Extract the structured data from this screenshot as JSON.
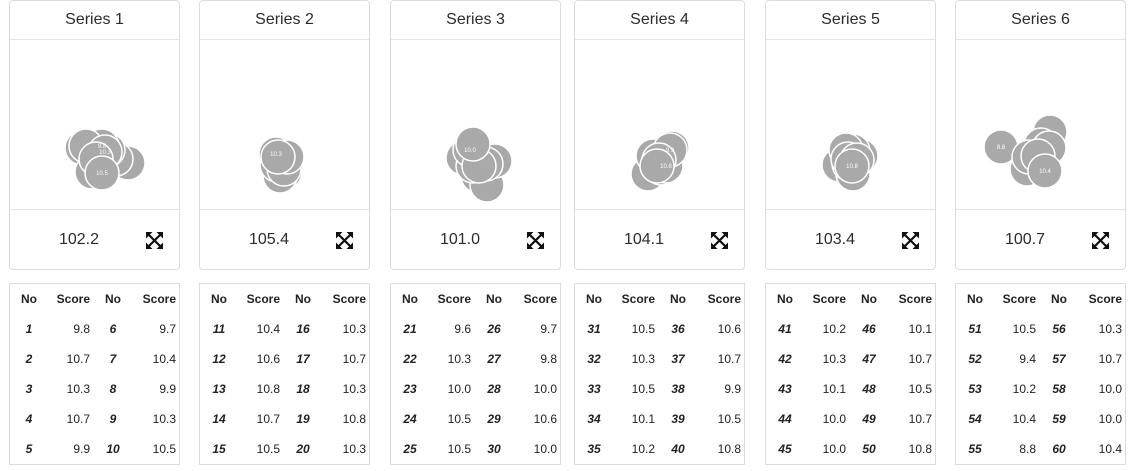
{
  "series": [
    {
      "title": "Series 1",
      "total": "102.2",
      "shot_labels": [
        "9.8",
        "10.3",
        "10.5"
      ],
      "table_headers": [
        "No",
        "Score",
        "No",
        "Score"
      ],
      "rows": [
        {
          "no1": "1",
          "score1": "9.8",
          "no2": "6",
          "score2": "9.7"
        },
        {
          "no1": "2",
          "score1": "10.7",
          "no2": "7",
          "score2": "10.4"
        },
        {
          "no1": "3",
          "score1": "10.3",
          "no2": "8",
          "score2": "9.9"
        },
        {
          "no1": "4",
          "score1": "10.7",
          "no2": "9",
          "score2": "10.3"
        },
        {
          "no1": "5",
          "score1": "9.9",
          "no2": "10",
          "score2": "10.5"
        }
      ]
    },
    {
      "title": "Series 2",
      "total": "105.4",
      "shot_labels": [
        "10.3"
      ],
      "table_headers": [
        "No",
        "Score",
        "No",
        "Score"
      ],
      "rows": [
        {
          "no1": "11",
          "score1": "10.4",
          "no2": "16",
          "score2": "10.3"
        },
        {
          "no1": "12",
          "score1": "10.6",
          "no2": "17",
          "score2": "10.7"
        },
        {
          "no1": "13",
          "score1": "10.8",
          "no2": "18",
          "score2": "10.3"
        },
        {
          "no1": "14",
          "score1": "10.7",
          "no2": "19",
          "score2": "10.8"
        },
        {
          "no1": "15",
          "score1": "10.5",
          "no2": "20",
          "score2": "10.3"
        }
      ]
    },
    {
      "title": "Series 3",
      "total": "101.0",
      "shot_labels": [
        "10.0"
      ],
      "table_headers": [
        "No",
        "Score",
        "No",
        "Score"
      ],
      "rows": [
        {
          "no1": "21",
          "score1": "9.6",
          "no2": "26",
          "score2": "9.7"
        },
        {
          "no1": "22",
          "score1": "10.3",
          "no2": "27",
          "score2": "9.8"
        },
        {
          "no1": "23",
          "score1": "10.0",
          "no2": "28",
          "score2": "10.0"
        },
        {
          "no1": "24",
          "score1": "10.5",
          "no2": "29",
          "score2": "10.6"
        },
        {
          "no1": "25",
          "score1": "10.5",
          "no2": "30",
          "score2": "10.0"
        }
      ]
    },
    {
      "title": "Series 4",
      "total": "104.1",
      "shot_labels": [
        "9.9",
        "10.8"
      ],
      "table_headers": [
        "No",
        "Score",
        "No",
        "Score"
      ],
      "rows": [
        {
          "no1": "31",
          "score1": "10.5",
          "no2": "36",
          "score2": "10.6"
        },
        {
          "no1": "32",
          "score1": "10.3",
          "no2": "37",
          "score2": "10.7"
        },
        {
          "no1": "33",
          "score1": "10.5",
          "no2": "38",
          "score2": "9.9"
        },
        {
          "no1": "34",
          "score1": "10.1",
          "no2": "39",
          "score2": "10.5"
        },
        {
          "no1": "35",
          "score1": "10.2",
          "no2": "40",
          "score2": "10.8"
        }
      ]
    },
    {
      "title": "Series 5",
      "total": "103.4",
      "shot_labels": [
        "10.8"
      ],
      "table_headers": [
        "No",
        "Score",
        "No",
        "Score"
      ],
      "rows": [
        {
          "no1": "41",
          "score1": "10.2",
          "no2": "46",
          "score2": "10.1"
        },
        {
          "no1": "42",
          "score1": "10.3",
          "no2": "47",
          "score2": "10.7"
        },
        {
          "no1": "43",
          "score1": "10.1",
          "no2": "48",
          "score2": "10.5"
        },
        {
          "no1": "44",
          "score1": "10.0",
          "no2": "49",
          "score2": "10.7"
        },
        {
          "no1": "45",
          "score1": "10.0",
          "no2": "50",
          "score2": "10.8"
        }
      ]
    },
    {
      "title": "Series 6",
      "total": "100.7",
      "shot_labels": [
        "8.8",
        "10.4"
      ],
      "table_headers": [
        "No",
        "Score",
        "No",
        "Score"
      ],
      "rows": [
        {
          "no1": "51",
          "score1": "10.5",
          "no2": "56",
          "score2": "10.3"
        },
        {
          "no1": "52",
          "score1": "9.4",
          "no2": "57",
          "score2": "10.7"
        },
        {
          "no1": "53",
          "score1": "10.2",
          "no2": "58",
          "score2": "10.0"
        },
        {
          "no1": "54",
          "score1": "10.4",
          "no2": "59",
          "score2": "10.0"
        },
        {
          "no1": "55",
          "score1": "8.8",
          "no2": "60",
          "score2": "10.4"
        }
      ]
    }
  ],
  "icons": {
    "expand": "expand-arrows-icon"
  },
  "colors": {
    "shot_fill": "#a9a9a9",
    "shot_stroke": "#ffffff",
    "border": "#dcdcdc"
  }
}
